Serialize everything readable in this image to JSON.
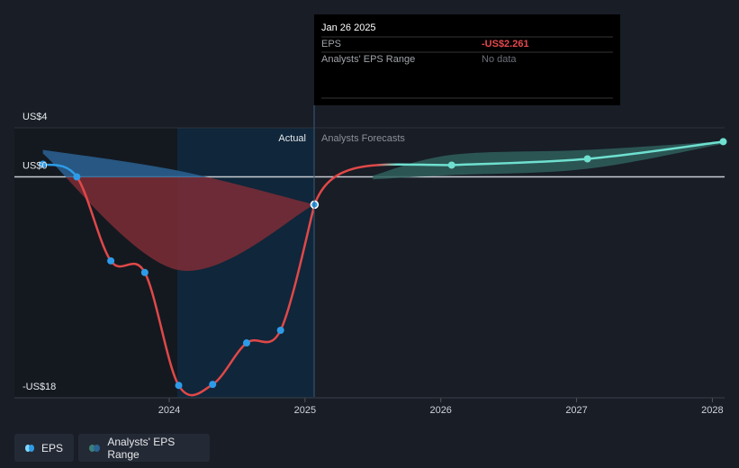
{
  "chart_data": {
    "type": "line",
    "actual_label": "Actual",
    "forecast_label": "Analysts Forecasts",
    "xlim": [
      2022.86,
      2028.09
    ],
    "xticks": [
      2024,
      2025,
      2026,
      2027,
      2028
    ],
    "ylim": [
      -18,
      4
    ],
    "yticks": [
      {
        "value": 4,
        "label": "US$4"
      },
      {
        "value": 0,
        "label": "US$0"
      },
      {
        "value": -18,
        "label": "-US$18"
      }
    ],
    "series": [
      {
        "name": "EPS",
        "color": "#e04848",
        "positive_color": "#2e9be8",
        "marker_color": "#2e9be8",
        "x": [
          2023.07,
          2023.32,
          2023.57,
          2023.82,
          2024.07,
          2024.32,
          2024.57,
          2024.82,
          2025.07
        ],
        "values": [
          1.03,
          0,
          -6.84,
          -7.79,
          -16.99,
          -16.91,
          -13.53,
          -12.5,
          -2.261
        ]
      },
      {
        "name": "Analysts' EPS Range",
        "type": "range",
        "color": "#2f5f5c",
        "past_color": "#2a6394",
        "past_negative_color": "#7c2d36",
        "x": [
          2023.07,
          2024.07,
          2025.07,
          2025.5,
          2026.08,
          2027.08,
          2028.08
        ],
        "low": [
          1.9,
          -7.6,
          -2.261,
          -0.2,
          0.15,
          0.66,
          2.7
        ],
        "high": [
          2.2,
          0.5,
          -2.261,
          0.1,
          1.8,
          2.2,
          2.9
        ]
      }
    ],
    "forecast": {
      "color": "#6fe0d0",
      "x": [
        2026.08,
        2027.08,
        2028.08
      ],
      "values": [
        0.96,
        1.47,
        2.87
      ]
    },
    "tooltip": {
      "date": "Jan 26 2025",
      "eps_label": "EPS",
      "eps": "-US$2.261",
      "range_label": "Analysts' EPS Range",
      "range": "No data"
    }
  }
}
